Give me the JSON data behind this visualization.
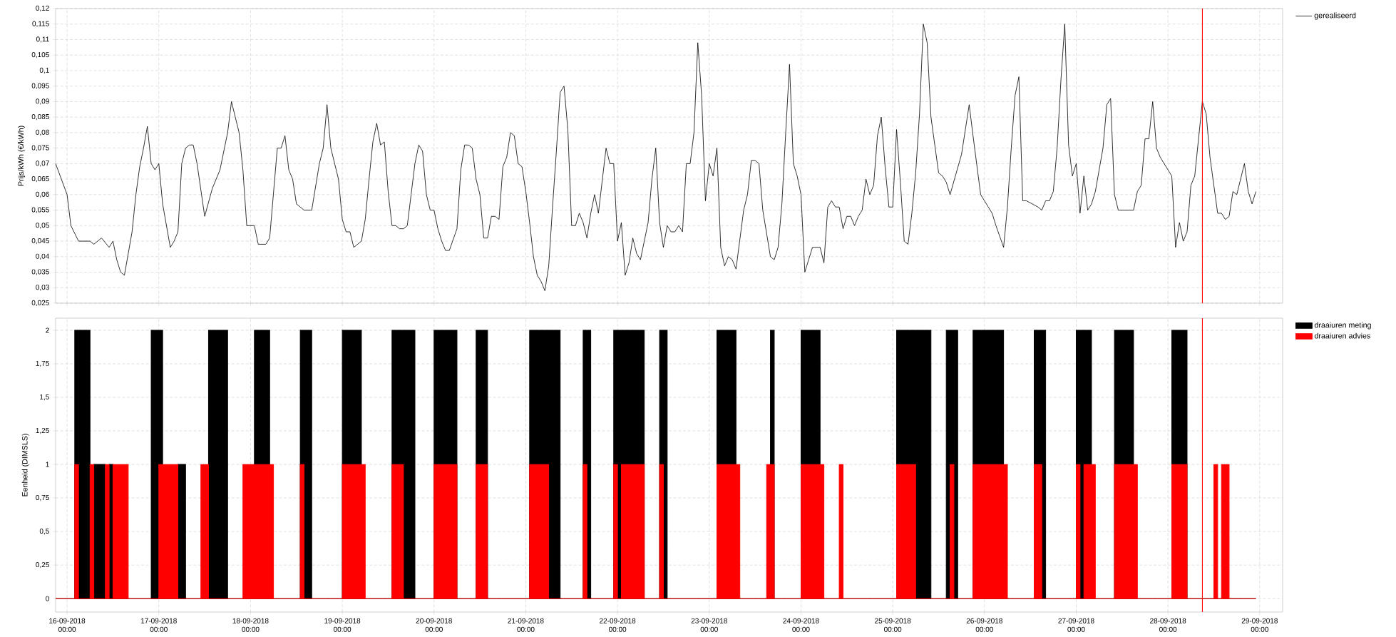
{
  "chart_data": [
    {
      "type": "line",
      "ylabel": "Prijs/kWh (€/kWh)",
      "legend": "top right",
      "grid": true,
      "tick_labels": "y",
      "xlim": [
        "2018-09-15T21:00",
        "2018-09-29T06:00"
      ],
      "xticks": [
        {
          "value": "2018-09-16",
          "label": null
        },
        {
          "value": "2018-09-17",
          "label": null
        },
        {
          "value": "2018-09-18",
          "label": null
        },
        {
          "value": "2018-09-19",
          "label": null
        },
        {
          "value": "2018-09-20",
          "label": null
        },
        {
          "value": "2018-09-21",
          "label": null
        },
        {
          "value": "2018-09-22",
          "label": null
        },
        {
          "value": "2018-09-23",
          "label": null
        },
        {
          "value": "2018-09-24",
          "label": null
        },
        {
          "value": "2018-09-25",
          "label": null
        },
        {
          "value": "2018-09-26",
          "label": null
        },
        {
          "value": "2018-09-27",
          "label": null
        },
        {
          "value": "2018-09-28",
          "label": null
        },
        {
          "value": "2018-09-29",
          "label": null
        }
      ],
      "ylim": [
        0.025,
        0.12
      ],
      "yticks": [
        {
          "value": 0.025,
          "label": "0,025"
        },
        {
          "value": 0.03,
          "label": "0,03"
        },
        {
          "value": 0.035,
          "label": "0,035"
        },
        {
          "value": 0.04,
          "label": "0,04"
        },
        {
          "value": 0.045,
          "label": "0,045"
        },
        {
          "value": 0.05,
          "label": "0,05"
        },
        {
          "value": 0.055,
          "label": "0,055"
        },
        {
          "value": 0.06,
          "label": "0,06"
        },
        {
          "value": 0.065,
          "label": "0,065"
        },
        {
          "value": 0.07,
          "label": "0,07"
        },
        {
          "value": 0.075,
          "label": "0,075"
        },
        {
          "value": 0.08,
          "label": "0,08"
        },
        {
          "value": 0.085,
          "label": "0,085"
        },
        {
          "value": 0.09,
          "label": "0,09"
        },
        {
          "value": 0.095,
          "label": "0,095"
        },
        {
          "value": 0.1,
          "label": "0,1"
        },
        {
          "value": 0.105,
          "label": "0,105"
        },
        {
          "value": 0.11,
          "label": "0,11"
        },
        {
          "value": 0.115,
          "label": "0,115"
        },
        {
          "value": 0.12,
          "label": "0,12"
        }
      ],
      "ref_lines": [
        {
          "axis": "x",
          "value": "2018-09-28T09:00",
          "color": "#ff0000"
        }
      ],
      "series": [
        {
          "name": "gerealiseerd",
          "color": "#000000",
          "x": [
            "2018-09-15T21:00",
            "2018-09-16T00:00",
            "2018-09-16T01:00",
            "2018-09-16T03:00",
            "2018-09-16T06:00",
            "2018-09-16T07:00",
            "2018-09-16T09:00",
            "2018-09-16T11:00",
            "2018-09-16T12:00",
            "2018-09-16T13:00",
            "2018-09-16T14:00",
            "2018-09-16T15:00",
            "2018-09-16T17:00",
            "2018-09-16T18:00",
            "2018-09-16T19:00",
            "2018-09-16T20:00",
            "2018-09-16T21:00",
            "2018-09-16T22:00",
            "2018-09-16T23:00",
            "2018-09-17T00:00",
            "2018-09-17T01:00",
            "2018-09-17T03:00",
            "2018-09-17T04:00",
            "2018-09-17T05:00",
            "2018-09-17T06:00",
            "2018-09-17T07:00",
            "2018-09-17T08:00",
            "2018-09-17T09:00",
            "2018-09-17T10:00",
            "2018-09-17T12:00",
            "2018-09-17T14:00",
            "2018-09-17T16:00",
            "2018-09-17T18:00",
            "2018-09-17T19:00",
            "2018-09-17T21:00",
            "2018-09-17T22:00",
            "2018-09-17T23:00",
            "2018-09-18T01:00",
            "2018-09-18T02:00",
            "2018-09-18T04:00",
            "2018-09-18T05:00",
            "2018-09-18T07:00",
            "2018-09-18T08:00",
            "2018-09-18T09:00",
            "2018-09-18T10:00",
            "2018-09-18T11:00",
            "2018-09-18T12:00",
            "2018-09-18T14:00",
            "2018-09-18T16:00",
            "2018-09-18T18:00",
            "2018-09-18T19:00",
            "2018-09-18T20:00",
            "2018-09-18T21:00",
            "2018-09-18T23:00",
            "2018-09-19T00:00",
            "2018-09-19T01:00",
            "2018-09-19T02:00",
            "2018-09-19T03:00",
            "2018-09-19T05:00",
            "2018-09-19T06:00",
            "2018-09-19T07:00",
            "2018-09-19T08:00",
            "2018-09-19T09:00",
            "2018-09-19T10:00",
            "2018-09-19T11:00",
            "2018-09-19T12:00",
            "2018-09-19T13:00",
            "2018-09-19T14:00",
            "2018-09-19T15:00",
            "2018-09-19T16:00",
            "2018-09-19T17:00",
            "2018-09-19T18:00",
            "2018-09-19T19:00",
            "2018-09-19T20:00",
            "2018-09-19T21:00",
            "2018-09-19T22:00",
            "2018-09-19T23:00",
            "2018-09-20T00:00",
            "2018-09-20T01:00",
            "2018-09-20T02:00",
            "2018-09-20T03:00",
            "2018-09-20T04:00",
            "2018-09-20T06:00",
            "2018-09-20T07:00",
            "2018-09-20T08:00",
            "2018-09-20T09:00",
            "2018-09-20T10:00",
            "2018-09-20T11:00",
            "2018-09-20T12:00",
            "2018-09-20T13:00",
            "2018-09-20T14:00",
            "2018-09-20T15:00",
            "2018-09-20T16:00",
            "2018-09-20T17:00",
            "2018-09-20T18:00",
            "2018-09-20T19:00",
            "2018-09-20T20:00",
            "2018-09-20T21:00",
            "2018-09-20T22:00",
            "2018-09-20T23:00",
            "2018-09-21T00:00",
            "2018-09-21T01:00",
            "2018-09-21T02:00",
            "2018-09-21T03:00",
            "2018-09-21T04:00",
            "2018-09-21T05:00",
            "2018-09-21T06:00",
            "2018-09-21T07:00",
            "2018-09-21T08:00",
            "2018-09-21T09:00",
            "2018-09-21T10:00",
            "2018-09-21T11:00",
            "2018-09-21T12:00",
            "2018-09-21T13:00",
            "2018-09-21T14:00",
            "2018-09-21T15:00",
            "2018-09-21T16:00",
            "2018-09-21T17:00",
            "2018-09-21T18:00",
            "2018-09-21T19:00",
            "2018-09-21T21:00",
            "2018-09-21T22:00",
            "2018-09-21T23:00",
            "2018-09-22T00:00",
            "2018-09-22T01:00",
            "2018-09-22T02:00",
            "2018-09-22T03:00",
            "2018-09-22T04:00",
            "2018-09-22T05:00",
            "2018-09-22T06:00",
            "2018-09-22T08:00",
            "2018-09-22T09:00",
            "2018-09-22T10:00",
            "2018-09-22T11:00",
            "2018-09-22T12:00",
            "2018-09-22T13:00",
            "2018-09-22T14:00",
            "2018-09-22T15:00",
            "2018-09-22T16:00",
            "2018-09-22T17:00",
            "2018-09-22T18:00",
            "2018-09-22T19:00",
            "2018-09-22T20:00",
            "2018-09-22T21:00",
            "2018-09-22T22:00",
            "2018-09-22T23:00",
            "2018-09-23T00:00",
            "2018-09-23T01:00",
            "2018-09-23T02:00",
            "2018-09-23T03:00",
            "2018-09-23T04:00",
            "2018-09-23T05:00",
            "2018-09-23T06:00",
            "2018-09-23T07:00",
            "2018-09-23T09:00",
            "2018-09-23T10:00",
            "2018-09-23T11:00",
            "2018-09-23T12:00",
            "2018-09-23T13:00",
            "2018-09-23T14:00",
            "2018-09-23T16:00",
            "2018-09-23T17:00",
            "2018-09-23T18:00",
            "2018-09-23T19:00",
            "2018-09-23T20:00",
            "2018-09-23T21:00",
            "2018-09-23T22:00",
            "2018-09-23T23:00",
            "2018-09-24T00:00",
            "2018-09-24T01:00",
            "2018-09-24T02:00",
            "2018-09-24T03:00",
            "2018-09-24T05:00",
            "2018-09-24T06:00",
            "2018-09-24T07:00",
            "2018-09-24T08:00",
            "2018-09-24T09:00",
            "2018-09-24T10:00",
            "2018-09-24T11:00",
            "2018-09-24T12:00",
            "2018-09-24T13:00",
            "2018-09-24T14:00",
            "2018-09-24T15:00",
            "2018-09-24T16:00",
            "2018-09-24T17:00",
            "2018-09-24T18:00",
            "2018-09-24T19:00",
            "2018-09-24T20:00",
            "2018-09-24T21:00",
            "2018-09-24T22:00",
            "2018-09-24T23:00",
            "2018-09-25T00:00",
            "2018-09-25T01:00",
            "2018-09-25T02:00",
            "2018-09-25T03:00",
            "2018-09-25T04:00",
            "2018-09-25T05:00",
            "2018-09-25T06:00",
            "2018-09-25T07:00",
            "2018-09-25T08:00",
            "2018-09-25T09:00",
            "2018-09-25T10:00",
            "2018-09-25T12:00",
            "2018-09-25T13:00",
            "2018-09-25T14:00",
            "2018-09-25T15:00",
            "2018-09-25T18:00",
            "2018-09-25T20:00",
            "2018-09-25T21:00",
            "2018-09-25T23:00",
            "2018-09-26T00:00",
            "2018-09-26T01:00",
            "2018-09-26T02:00",
            "2018-09-26T03:00",
            "2018-09-26T05:00",
            "2018-09-26T06:00",
            "2018-09-26T07:00",
            "2018-09-26T08:00",
            "2018-09-26T09:00",
            "2018-09-26T10:00",
            "2018-09-26T11:00",
            "2018-09-26T14:00",
            "2018-09-26T15:00",
            "2018-09-26T16:00",
            "2018-09-26T17:00",
            "2018-09-26T18:00",
            "2018-09-26T19:00",
            "2018-09-26T20:00",
            "2018-09-26T21:00",
            "2018-09-26T22:00",
            "2018-09-26T23:00",
            "2018-09-27T00:00",
            "2018-09-27T01:00",
            "2018-09-27T02:00",
            "2018-09-27T03:00",
            "2018-09-27T04:00",
            "2018-09-27T05:00",
            "2018-09-27T07:00",
            "2018-09-27T08:00",
            "2018-09-27T09:00",
            "2018-09-27T10:00",
            "2018-09-27T11:00",
            "2018-09-27T15:00",
            "2018-09-27T16:00",
            "2018-09-27T17:00",
            "2018-09-27T18:00",
            "2018-09-27T19:00",
            "2018-09-27T20:00",
            "2018-09-27T21:00",
            "2018-09-27T22:00",
            "2018-09-28T00:00",
            "2018-09-28T01:00",
            "2018-09-28T02:00",
            "2018-09-28T03:00",
            "2018-09-28T04:00",
            "2018-09-28T05:00",
            "2018-09-28T06:00",
            "2018-09-28T07:00",
            "2018-09-28T09:00",
            "2018-09-28T10:00",
            "2018-09-28T11:00",
            "2018-09-28T13:00",
            "2018-09-28T14:00",
            "2018-09-28T15:00",
            "2018-09-28T16:00",
            "2018-09-28T17:00",
            "2018-09-28T18:00",
            "2018-09-28T20:00",
            "2018-09-28T21:00",
            "2018-09-28T22:00",
            "2018-09-28T23:00"
          ],
          "values": [
            0.07,
            0.06,
            0.05,
            0.045,
            0.045,
            0.044,
            0.046,
            0.043,
            0.045,
            0.039,
            0.035,
            0.034,
            0.048,
            0.06,
            0.069,
            0.075,
            0.082,
            0.07,
            0.068,
            0.07,
            0.057,
            0.043,
            0.045,
            0.048,
            0.07,
            0.075,
            0.076,
            0.076,
            0.07,
            0.053,
            0.062,
            0.068,
            0.08,
            0.09,
            0.08,
            0.068,
            0.05,
            0.05,
            0.044,
            0.044,
            0.046,
            0.075,
            0.075,
            0.079,
            0.068,
            0.065,
            0.057,
            0.055,
            0.055,
            0.07,
            0.075,
            0.089,
            0.075,
            0.065,
            0.052,
            0.048,
            0.048,
            0.043,
            0.045,
            0.052,
            0.065,
            0.077,
            0.083,
            0.076,
            0.077,
            0.061,
            0.05,
            0.05,
            0.049,
            0.049,
            0.05,
            0.06,
            0.07,
            0.076,
            0.074,
            0.06,
            0.055,
            0.055,
            0.049,
            0.045,
            0.042,
            0.042,
            0.049,
            0.068,
            0.076,
            0.076,
            0.075,
            0.065,
            0.06,
            0.046,
            0.046,
            0.053,
            0.053,
            0.052,
            0.069,
            0.072,
            0.08,
            0.079,
            0.07,
            0.069,
            0.061,
            0.051,
            0.04,
            0.034,
            0.032,
            0.029,
            0.037,
            0.056,
            0.074,
            0.093,
            0.095,
            0.081,
            0.05,
            0.05,
            0.054,
            0.051,
            0.046,
            0.054,
            0.06,
            0.054,
            0.075,
            0.07,
            0.07,
            0.045,
            0.051,
            0.034,
            0.038,
            0.046,
            0.041,
            0.039,
            0.051,
            0.065,
            0.075,
            0.051,
            0.043,
            0.05,
            0.048,
            0.048,
            0.05,
            0.048,
            0.07,
            0.07,
            0.08,
            0.109,
            0.092,
            0.058,
            0.07,
            0.066,
            0.075,
            0.043,
            0.037,
            0.04,
            0.039,
            0.036,
            0.055,
            0.06,
            0.071,
            0.071,
            0.07,
            0.055,
            0.04,
            0.039,
            0.043,
            0.057,
            0.08,
            0.102,
            0.07,
            0.066,
            0.06,
            0.035,
            0.039,
            0.043,
            0.043,
            0.038,
            0.056,
            0.058,
            0.056,
            0.056,
            0.049,
            0.053,
            0.053,
            0.05,
            0.053,
            0.055,
            0.065,
            0.06,
            0.063,
            0.079,
            0.085,
            0.069,
            0.056,
            0.056,
            0.081,
            0.064,
            0.045,
            0.044,
            0.054,
            0.067,
            0.086,
            0.115,
            0.109,
            0.085,
            0.067,
            0.066,
            0.064,
            0.06,
            0.073,
            0.089,
            0.079,
            0.06,
            0.058,
            0.056,
            0.054,
            0.05,
            0.043,
            0.056,
            0.075,
            0.092,
            0.098,
            0.058,
            0.058,
            0.056,
            0.055,
            0.058,
            0.058,
            0.061,
            0.075,
            0.097,
            0.115,
            0.076,
            0.066,
            0.07,
            0.054,
            0.066,
            0.055,
            0.057,
            0.061,
            0.075,
            0.089,
            0.091,
            0.06,
            0.055,
            0.055,
            0.061,
            0.063,
            0.078,
            0.078,
            0.09,
            0.075,
            0.072,
            0.068,
            0.066,
            0.043,
            0.051,
            0.045,
            0.048,
            0.063,
            0.066,
            0.09,
            0.086,
            0.072,
            0.054,
            0.054,
            0.052,
            0.053,
            0.061,
            0.06,
            0.07,
            0.061,
            0.057,
            0.061
          ]
        }
      ]
    },
    {
      "type": "area",
      "ylabel": "Eenheid (DIMSLS)",
      "legend": "top right",
      "grid": true,
      "xlim": [
        "2018-09-15T21:00",
        "2018-09-29T06:00"
      ],
      "xticks": [
        {
          "value": "2018-09-16",
          "label": "16-09-2018 00:00"
        },
        {
          "value": "2018-09-17",
          "label": "17-09-2018 00:00"
        },
        {
          "value": "2018-09-18",
          "label": "18-09-2018 00:00"
        },
        {
          "value": "2018-09-19",
          "label": "19-09-2018 00:00"
        },
        {
          "value": "2018-09-20",
          "label": "20-09-2018 00:00"
        },
        {
          "value": "2018-09-21",
          "label": "21-09-2018 00:00"
        },
        {
          "value": "2018-09-22",
          "label": "22-09-2018 00:00"
        },
        {
          "value": "2018-09-23",
          "label": "23-09-2018 00:00"
        },
        {
          "value": "2018-09-24",
          "label": "24-09-2018 00:00"
        },
        {
          "value": "2018-09-25",
          "label": "25-09-2018 00:00"
        },
        {
          "value": "2018-09-26",
          "label": "26-09-2018 00:00"
        },
        {
          "value": "2018-09-27",
          "label": "27-09-2018 00:00"
        },
        {
          "value": "2018-09-28",
          "label": "28-09-2018 00:00"
        },
        {
          "value": "2018-09-29",
          "label": "29-09-2018 00:00"
        }
      ],
      "ylim": [
        -0.1,
        2.09
      ],
      "yticks": [
        0,
        {
          "value": 0.25,
          "label": "0,25"
        },
        {
          "value": 0.5,
          "label": "0,5"
        },
        {
          "value": 0.75,
          "label": "0,75"
        },
        1,
        {
          "value": 1.25,
          "label": "1,25"
        },
        {
          "value": 1.5,
          "label": "1,5"
        },
        {
          "value": 1.75,
          "label": "1,75"
        },
        2
      ],
      "ref_lines": [
        {
          "axis": "x",
          "value": "2018-09-28T09:00",
          "color": "#ff0000"
        }
      ],
      "series": [
        {
          "name": "draaiuren meting",
          "color": "#000000",
          "x": [
            "2018-09-15T21:00",
            "2018-09-16T02:00",
            "2018-09-16T02:00",
            "2018-09-16T06:00",
            "2018-09-16T06:00",
            "2018-09-16T07:00",
            "2018-09-16T07:00",
            "2018-09-16T10:00",
            "2018-09-16T10:00",
            "2018-09-16T11:00",
            "2018-09-16T11:00",
            "2018-09-16T12:00",
            "2018-09-16T12:00",
            "2018-09-16T22:00",
            "2018-09-16T22:00",
            "2018-09-17T01:00",
            "2018-09-17T01:00",
            "2018-09-17T05:00",
            "2018-09-17T05:00",
            "2018-09-17T07:00",
            "2018-09-17T07:00",
            "2018-09-17T13:00",
            "2018-09-17T13:00",
            "2018-09-17T18:00",
            "2018-09-17T18:00",
            "2018-09-18T01:00",
            "2018-09-18T01:00",
            "2018-09-18T05:00",
            "2018-09-18T05:00",
            "2018-09-18T13:00",
            "2018-09-18T13:00",
            "2018-09-18T16:00",
            "2018-09-18T16:00",
            "2018-09-19T00:00",
            "2018-09-19T00:00",
            "2018-09-19T05:00",
            "2018-09-19T05:00",
            "2018-09-19T13:00",
            "2018-09-19T13:00",
            "2018-09-19T19:00",
            "2018-09-19T19:00",
            "2018-09-20T00:00",
            "2018-09-20T00:00",
            "2018-09-20T06:00",
            "2018-09-20T06:00",
            "2018-09-20T11:00",
            "2018-09-20T11:00",
            "2018-09-20T14:00",
            "2018-09-20T14:00",
            "2018-09-21T01:00",
            "2018-09-21T01:00",
            "2018-09-21T09:00",
            "2018-09-21T09:00",
            "2018-09-21T15:00",
            "2018-09-21T15:00",
            "2018-09-21T17:00",
            "2018-09-21T17:00",
            "2018-09-21T23:00",
            "2018-09-21T23:00",
            "2018-09-22T07:00",
            "2018-09-22T07:00",
            "2018-09-22T11:00",
            "2018-09-22T11:00",
            "2018-09-22T13:00",
            "2018-09-22T13:00",
            "2018-09-23T02:00",
            "2018-09-23T02:00",
            "2018-09-23T07:00",
            "2018-09-23T07:00",
            "2018-09-23T16:00",
            "2018-09-23T16:00",
            "2018-09-23T17:00",
            "2018-09-23T17:00",
            "2018-09-24T00:00",
            "2018-09-24T00:00",
            "2018-09-24T05:00",
            "2018-09-24T05:00",
            "2018-09-25T01:00",
            "2018-09-25T01:00",
            "2018-09-25T10:00",
            "2018-09-25T10:00",
            "2018-09-25T14:00",
            "2018-09-25T14:00",
            "2018-09-25T17:00",
            "2018-09-25T17:00",
            "2018-09-25T21:00",
            "2018-09-25T21:00",
            "2018-09-26T05:00",
            "2018-09-26T05:00",
            "2018-09-26T13:00",
            "2018-09-26T13:00",
            "2018-09-26T16:00",
            "2018-09-26T16:00",
            "2018-09-27T00:00",
            "2018-09-27T00:00",
            "2018-09-27T04:00",
            "2018-09-27T04:00",
            "2018-09-27T10:00",
            "2018-09-27T10:00",
            "2018-09-27T15:00",
            "2018-09-27T15:00",
            "2018-09-28T01:00",
            "2018-09-28T01:00",
            "2018-09-28T05:00",
            "2018-09-28T05:00",
            "2018-09-28T23:00"
          ],
          "values": [
            0,
            0,
            2,
            2,
            0,
            0,
            1,
            1,
            0,
            0,
            1,
            1,
            0,
            0,
            2,
            2,
            0,
            0,
            1,
            1,
            0,
            0,
            2,
            2,
            0,
            0,
            2,
            2,
            0,
            0,
            2,
            2,
            0,
            0,
            2,
            2,
            0,
            0,
            2,
            2,
            0,
            0,
            2,
            2,
            0,
            0,
            2,
            2,
            0,
            0,
            2,
            2,
            0,
            0,
            2,
            2,
            0,
            0,
            2,
            2,
            0,
            0,
            2,
            2,
            0,
            0,
            2,
            2,
            0,
            0,
            2,
            2,
            0,
            0,
            2,
            2,
            0,
            0,
            2,
            2,
            0,
            0,
            2,
            2,
            0,
            0,
            2,
            2,
            0,
            0,
            2,
            2,
            0,
            0,
            2,
            2,
            0,
            0,
            2,
            2,
            0,
            0,
            2,
            2,
            0,
            0
          ]
        },
        {
          "name": "draaiuren advies",
          "color": "#ff0000",
          "x": [
            "2018-09-15T21:00",
            "2018-09-16T02:00",
            "2018-09-16T02:00",
            "2018-09-16T03:00",
            "2018-09-16T03:00",
            "2018-09-16T06:00",
            "2018-09-16T06:00",
            "2018-09-16T07:00",
            "2018-09-16T07:00",
            "2018-09-16T10:00",
            "2018-09-16T10:00",
            "2018-09-16T11:00",
            "2018-09-16T11:00",
            "2018-09-16T12:00",
            "2018-09-16T12:00",
            "2018-09-16T16:00",
            "2018-09-16T16:00",
            "2018-09-17T00:00",
            "2018-09-17T00:00",
            "2018-09-17T05:00",
            "2018-09-17T05:00",
            "2018-09-17T11:00",
            "2018-09-17T11:00",
            "2018-09-17T13:00",
            "2018-09-17T13:00",
            "2018-09-17T22:00",
            "2018-09-17T22:00",
            "2018-09-18T06:00",
            "2018-09-18T06:00",
            "2018-09-18T13:00",
            "2018-09-18T13:00",
            "2018-09-18T14:00",
            "2018-09-18T14:00",
            "2018-09-19T00:00",
            "2018-09-19T00:00",
            "2018-09-19T06:00",
            "2018-09-19T06:00",
            "2018-09-19T13:00",
            "2018-09-19T13:00",
            "2018-09-19T16:00",
            "2018-09-19T16:00",
            "2018-09-20T00:00",
            "2018-09-20T00:00",
            "2018-09-20T06:00",
            "2018-09-20T06:00",
            "2018-09-20T11:00",
            "2018-09-20T11:00",
            "2018-09-20T14:00",
            "2018-09-20T14:00",
            "2018-09-21T01:00",
            "2018-09-21T01:00",
            "2018-09-21T06:00",
            "2018-09-21T06:00",
            "2018-09-21T15:00",
            "2018-09-21T15:00",
            "2018-09-21T16:00",
            "2018-09-21T16:00",
            "2018-09-21T23:00",
            "2018-09-21T23:00",
            "2018-09-22T00:00",
            "2018-09-22T00:00",
            "2018-09-22T01:00",
            "2018-09-22T01:00",
            "2018-09-22T07:00",
            "2018-09-22T07:00",
            "2018-09-22T11:00",
            "2018-09-22T11:00",
            "2018-09-22T12:00",
            "2018-09-22T12:00",
            "2018-09-23T02:00",
            "2018-09-23T02:00",
            "2018-09-23T08:00",
            "2018-09-23T08:00",
            "2018-09-23T15:00",
            "2018-09-23T15:00",
            "2018-09-23T17:00",
            "2018-09-23T17:00",
            "2018-09-24T00:00",
            "2018-09-24T00:00",
            "2018-09-24T06:00",
            "2018-09-24T06:00",
            "2018-09-24T10:00",
            "2018-09-24T10:00",
            "2018-09-24T11:00",
            "2018-09-24T11:00",
            "2018-09-25T01:00",
            "2018-09-25T01:00",
            "2018-09-25T06:00",
            "2018-09-25T06:00",
            "2018-09-25T15:00",
            "2018-09-25T15:00",
            "2018-09-25T16:00",
            "2018-09-25T16:00",
            "2018-09-25T21:00",
            "2018-09-25T21:00",
            "2018-09-26T06:00",
            "2018-09-26T06:00",
            "2018-09-26T13:00",
            "2018-09-26T13:00",
            "2018-09-26T15:00",
            "2018-09-26T15:00",
            "2018-09-27T00:00",
            "2018-09-27T00:00",
            "2018-09-27T01:00",
            "2018-09-27T01:00",
            "2018-09-27T02:00",
            "2018-09-27T02:00",
            "2018-09-27T05:00",
            "2018-09-27T05:00",
            "2018-09-27T10:00",
            "2018-09-27T10:00",
            "2018-09-27T16:00",
            "2018-09-27T16:00",
            "2018-09-28T01:00",
            "2018-09-28T01:00",
            "2018-09-28T05:00",
            "2018-09-28T05:00",
            "2018-09-28T12:00",
            "2018-09-28T12:00",
            "2018-09-28T13:00",
            "2018-09-28T13:00",
            "2018-09-28T14:00",
            "2018-09-28T14:00",
            "2018-09-28T16:00",
            "2018-09-28T16:00",
            "2018-09-28T23:00"
          ],
          "values": [
            0,
            0,
            1,
            1,
            0,
            0,
            1,
            1,
            0,
            0,
            1,
            1,
            0,
            0,
            1,
            1,
            0,
            0,
            1,
            1,
            0,
            0,
            1,
            1,
            0,
            0,
            1,
            1,
            0,
            0,
            1,
            1,
            0,
            0,
            1,
            1,
            0,
            0,
            1,
            1,
            0,
            0,
            1,
            1,
            0,
            0,
            1,
            1,
            0,
            0,
            1,
            1,
            0,
            0,
            1,
            1,
            0,
            0,
            1,
            1,
            0,
            0,
            1,
            1,
            0,
            0,
            1,
            1,
            0,
            0,
            1,
            1,
            0,
            0,
            1,
            1,
            0,
            0,
            1,
            1,
            0,
            0,
            1,
            1,
            0,
            0,
            1,
            1,
            0,
            0,
            1,
            1,
            0,
            0,
            1,
            1,
            0,
            0,
            1,
            1,
            0,
            0,
            1,
            1,
            0,
            0,
            1,
            1,
            0,
            0,
            1,
            1,
            0,
            0,
            1,
            1,
            0,
            0,
            1,
            1,
            0,
            0,
            1,
            1,
            0,
            0
          ]
        }
      ]
    }
  ]
}
